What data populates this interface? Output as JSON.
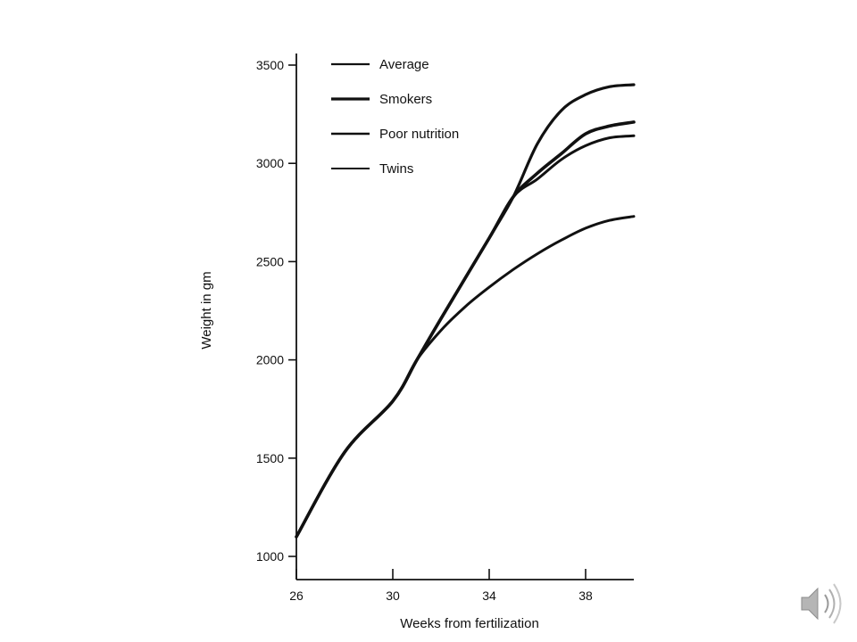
{
  "chart_data": {
    "type": "line",
    "title": "",
    "xlabel": "Weeks from fertilization",
    "ylabel": "Weight in gm",
    "xlim": [
      26,
      40
    ],
    "ylim": [
      1000,
      3500
    ],
    "x_ticks": [
      26,
      30,
      34,
      38
    ],
    "y_ticks": [
      1000,
      1500,
      2000,
      2500,
      3000,
      3500
    ],
    "grid": false,
    "legend_position": "top-left",
    "series": [
      {
        "name": "Average",
        "x": [
          26,
          28,
          30,
          31,
          32,
          34,
          35,
          36,
          37,
          38,
          39,
          40
        ],
        "y": [
          1100,
          1530,
          1790,
          2000,
          2210,
          2620,
          2830,
          3100,
          3270,
          3350,
          3390,
          3400
        ]
      },
      {
        "name": "Smokers",
        "x": [
          26,
          28,
          30,
          31,
          32,
          34,
          35,
          36,
          37,
          38,
          39,
          40
        ],
        "y": [
          1100,
          1530,
          1790,
          2000,
          2210,
          2620,
          2830,
          2950,
          3050,
          3150,
          3190,
          3210
        ]
      },
      {
        "name": "Poor nutrition",
        "x": [
          26,
          28,
          30,
          31,
          32,
          34,
          35,
          36,
          37,
          38,
          39,
          40
        ],
        "y": [
          1100,
          1530,
          1790,
          2000,
          2210,
          2620,
          2830,
          2920,
          3020,
          3090,
          3130,
          3140
        ]
      },
      {
        "name": "Twins",
        "x": [
          26,
          28,
          30,
          31,
          32,
          33,
          34,
          35,
          36,
          37,
          38,
          39,
          40
        ],
        "y": [
          1100,
          1530,
          1790,
          2000,
          2150,
          2270,
          2370,
          2460,
          2540,
          2610,
          2670,
          2710,
          2730
        ]
      }
    ]
  },
  "colors": {
    "line": "#111111",
    "axis": "#111111",
    "background": "#ffffff"
  },
  "icons": {
    "corner": "speaker-icon"
  }
}
